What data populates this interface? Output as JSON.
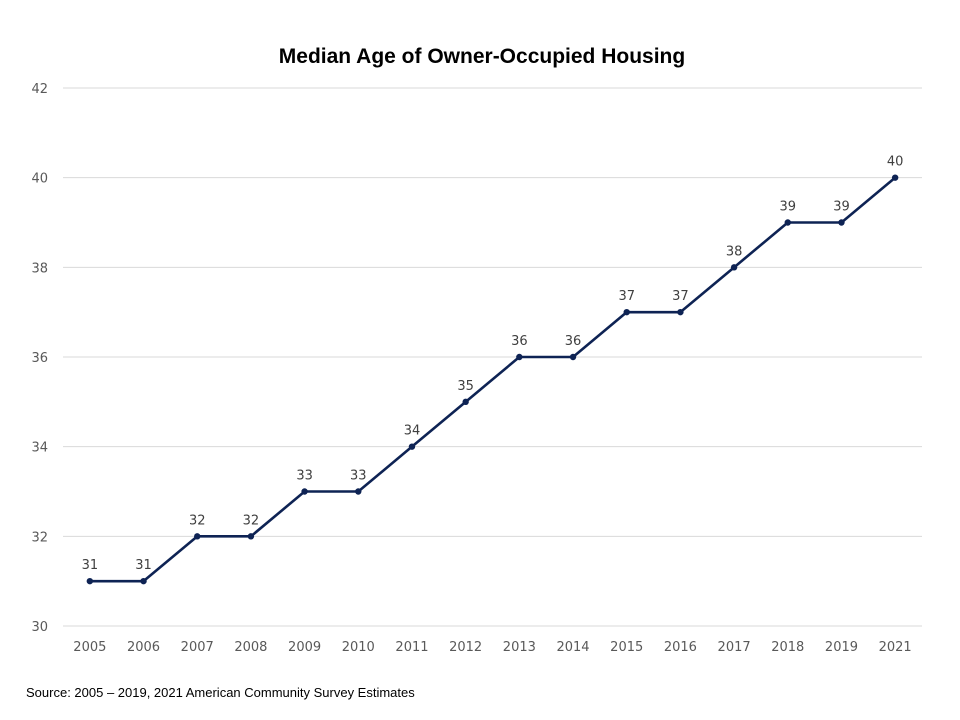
{
  "chart_data": {
    "type": "line",
    "title": "Median Age of Owner-Occupied Housing",
    "xlabel": "",
    "ylabel": "",
    "categories": [
      "2005",
      "2006",
      "2007",
      "2008",
      "2009",
      "2010",
      "2011",
      "2012",
      "2013",
      "2014",
      "2015",
      "2016",
      "2017",
      "2018",
      "2019",
      "2021"
    ],
    "series": [
      {
        "values": [
          31,
          31,
          32,
          32,
          33,
          33,
          34,
          35,
          36,
          36,
          37,
          37,
          38,
          39,
          39,
          40
        ]
      }
    ],
    "ylim": [
      30,
      42
    ],
    "yticks": [
      "30",
      "32",
      "34",
      "36",
      "38",
      "40",
      "42"
    ],
    "grid": true,
    "legend": "none",
    "line_color": "#0e2354"
  },
  "source_note": "Source: 2005 – 2019, 2021 American Community Survey Estimates"
}
